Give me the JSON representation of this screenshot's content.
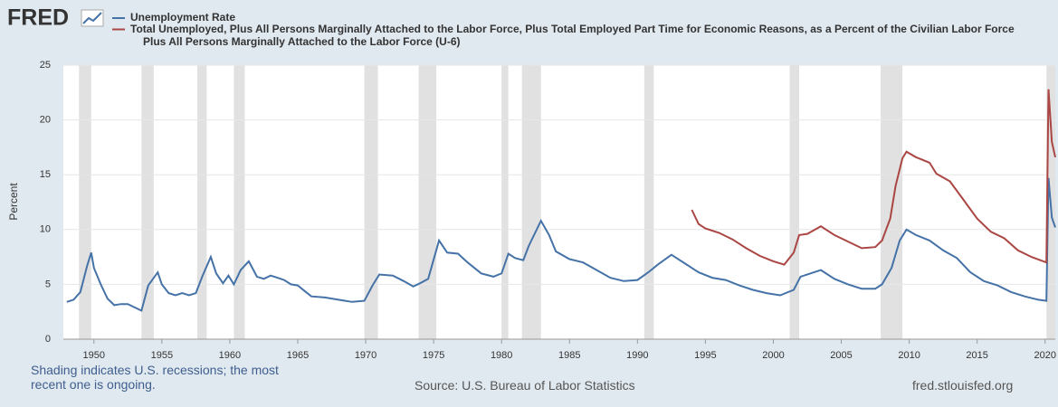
{
  "brand": "FRED",
  "chart_data": {
    "type": "line",
    "ylabel": "Percent",
    "xlim": [
      1947.75,
      2020.75
    ],
    "ylim": [
      0,
      25
    ],
    "xticks": [
      1950,
      1955,
      1960,
      1965,
      1970,
      1975,
      1980,
      1985,
      1990,
      1995,
      2000,
      2005,
      2010,
      2015,
      2020
    ],
    "yticks": [
      0,
      5,
      10,
      15,
      20,
      25
    ],
    "grid": true,
    "recessions": [
      [
        1948.9,
        1949.8
      ],
      [
        1953.5,
        1954.4
      ],
      [
        1957.6,
        1958.3
      ],
      [
        1960.3,
        1961.1
      ],
      [
        1969.9,
        1970.9
      ],
      [
        1973.9,
        1975.2
      ],
      [
        1980.0,
        1980.5
      ],
      [
        1981.5,
        1982.9
      ],
      [
        1990.5,
        1991.2
      ],
      [
        2001.2,
        2001.9
      ],
      [
        2007.9,
        2009.5
      ],
      [
        2020.1,
        2020.75
      ]
    ],
    "recession_color": "#e1e1e1",
    "series": [
      {
        "name": "Unemployment Rate",
        "color": "#4572a7",
        "x": [
          1948.0,
          1948.5,
          1949.0,
          1949.5,
          1949.8,
          1950.0,
          1950.5,
          1951.0,
          1951.5,
          1952.0,
          1952.5,
          1953.0,
          1953.5,
          1954.0,
          1954.7,
          1955.0,
          1955.5,
          1956.0,
          1956.5,
          1957.0,
          1957.5,
          1958.0,
          1958.6,
          1959.0,
          1959.5,
          1959.9,
          1960.3,
          1960.8,
          1961.4,
          1962.0,
          1962.5,
          1963.0,
          1963.5,
          1964.0,
          1964.5,
          1965.0,
          1965.5,
          1966.0,
          1967.0,
          1968.0,
          1969.0,
          1969.9,
          1970.5,
          1971.0,
          1972.0,
          1972.8,
          1973.5,
          1974.0,
          1974.6,
          1975.4,
          1976.0,
          1976.8,
          1977.5,
          1978.5,
          1979.4,
          1980.0,
          1980.5,
          1981.0,
          1981.6,
          1982.0,
          1982.9,
          1983.5,
          1984.0,
          1985.0,
          1986.0,
          1987.0,
          1988.0,
          1989.0,
          1990.0,
          1990.8,
          1991.5,
          1992.5,
          1993.5,
          1994.5,
          1995.5,
          1996.5,
          1997.5,
          1998.5,
          1999.5,
          2000.5,
          2001.5,
          2002.0,
          2003.5,
          2004.5,
          2005.5,
          2006.5,
          2007.5,
          2008.0,
          2008.7,
          2009.3,
          2009.8,
          2010.5,
          2011.5,
          2012.5,
          2013.5,
          2014.5,
          2015.5,
          2016.5,
          2017.5,
          2018.5,
          2019.5,
          2020.1,
          2020.25,
          2020.5,
          2020.75
        ],
        "values": [
          3.4,
          3.6,
          4.3,
          6.7,
          7.9,
          6.5,
          5.0,
          3.7,
          3.1,
          3.2,
          3.2,
          2.9,
          2.6,
          4.9,
          6.1,
          5.0,
          4.2,
          4.0,
          4.2,
          4.0,
          4.2,
          5.8,
          7.5,
          6.0,
          5.1,
          5.8,
          5.0,
          6.3,
          7.1,
          5.7,
          5.5,
          5.8,
          5.6,
          5.4,
          5.0,
          4.9,
          4.4,
          3.9,
          3.8,
          3.6,
          3.4,
          3.5,
          4.9,
          5.9,
          5.8,
          5.3,
          4.8,
          5.1,
          5.5,
          9.0,
          7.9,
          7.8,
          7.0,
          6.0,
          5.7,
          6.0,
          7.8,
          7.4,
          7.2,
          8.5,
          10.8,
          9.5,
          8.0,
          7.3,
          7.0,
          6.3,
          5.6,
          5.3,
          5.4,
          6.1,
          6.8,
          7.7,
          6.9,
          6.1,
          5.6,
          5.4,
          4.9,
          4.5,
          4.2,
          4.0,
          4.5,
          5.7,
          6.3,
          5.5,
          5.0,
          4.6,
          4.6,
          5.0,
          6.5,
          9.0,
          10.0,
          9.5,
          9.0,
          8.1,
          7.4,
          6.1,
          5.3,
          4.9,
          4.3,
          3.9,
          3.6,
          3.5,
          14.7,
          11.1,
          10.2
        ]
      },
      {
        "name": "Total Unemployed, Plus All Persons Marginally Attached to the Labor Force, Plus Total Employed Part Time for Economic Reasons, as a Percent of the Civilian Labor Force Plus All Persons Marginally Attached to the Labor Force (U-6)",
        "color": "#aa4643",
        "x": [
          1994.0,
          1994.5,
          1995.0,
          1996.0,
          1997.0,
          1998.0,
          1999.0,
          2000.0,
          2000.8,
          2001.5,
          2001.9,
          2002.5,
          2003.5,
          2004.5,
          2005.5,
          2006.5,
          2007.5,
          2008.0,
          2008.6,
          2009.0,
          2009.5,
          2009.8,
          2010.5,
          2011.5,
          2012.0,
          2013.0,
          2014.0,
          2015.0,
          2016.0,
          2017.0,
          2018.0,
          2019.0,
          2020.1,
          2020.25,
          2020.5,
          2020.75
        ],
        "values": [
          11.8,
          10.5,
          10.1,
          9.7,
          9.1,
          8.3,
          7.6,
          7.1,
          6.8,
          7.9,
          9.5,
          9.6,
          10.3,
          9.5,
          8.9,
          8.3,
          8.4,
          9.0,
          11.0,
          14.0,
          16.5,
          17.1,
          16.6,
          16.1,
          15.1,
          14.4,
          12.7,
          11.0,
          9.8,
          9.2,
          8.1,
          7.5,
          7.0,
          22.8,
          18.0,
          16.6
        ]
      }
    ],
    "note": "Shading indicates U.S. recessions; the most recent one is ongoing.",
    "source": "Source: U.S. Bureau of Labor Statistics",
    "site": "fred.stlouisfed.org"
  }
}
